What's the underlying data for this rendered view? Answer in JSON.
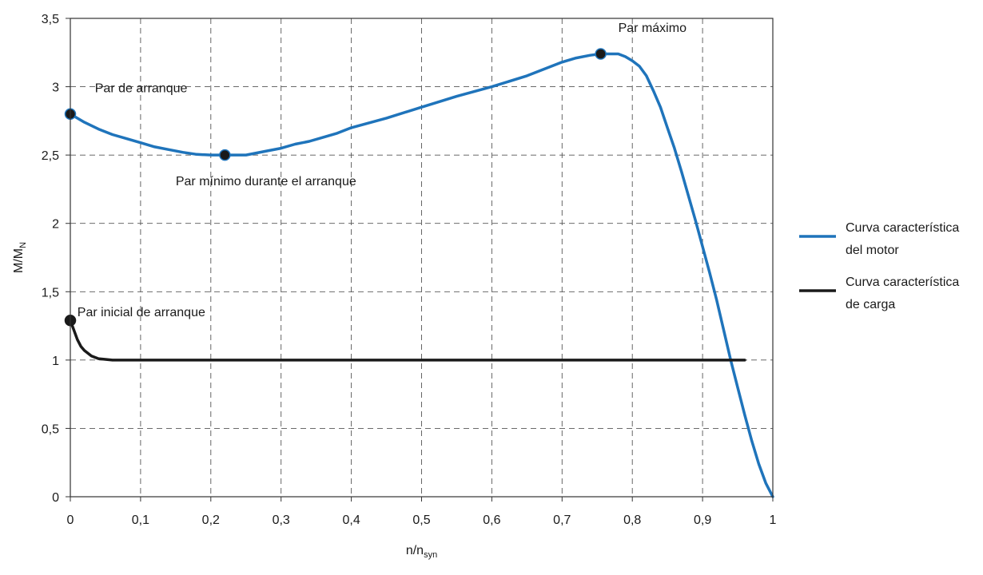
{
  "chart_data": {
    "type": "line",
    "xlabel_main": "n/n",
    "xlabel_sub": "syn",
    "ylabel_main": "M/M",
    "ylabel_sub": "N",
    "xlim": [
      0,
      1
    ],
    "ylim": [
      0,
      3.5
    ],
    "grid": true,
    "legend_position": "right",
    "x_ticks": [
      {
        "value": 0,
        "label": "0"
      },
      {
        "value": 0.1,
        "label": "0,1"
      },
      {
        "value": 0.2,
        "label": "0,2"
      },
      {
        "value": 0.3,
        "label": "0,3"
      },
      {
        "value": 0.4,
        "label": "0,4"
      },
      {
        "value": 0.5,
        "label": "0,5"
      },
      {
        "value": 0.6,
        "label": "0,6"
      },
      {
        "value": 0.7,
        "label": "0,7"
      },
      {
        "value": 0.8,
        "label": "0,8"
      },
      {
        "value": 0.9,
        "label": "0,9"
      },
      {
        "value": 1,
        "label": "1"
      }
    ],
    "y_ticks": [
      {
        "value": 0,
        "label": "0"
      },
      {
        "value": 0.5,
        "label": "0,5"
      },
      {
        "value": 1,
        "label": "1"
      },
      {
        "value": 1.5,
        "label": "1,5"
      },
      {
        "value": 2,
        "label": "2"
      },
      {
        "value": 2.5,
        "label": "2,5"
      },
      {
        "value": 3,
        "label": "3"
      },
      {
        "value": 3.5,
        "label": "3,5"
      }
    ],
    "series": [
      {
        "name": "Curva característica del motor",
        "legend_lines": [
          "Curva característica",
          "del motor"
        ],
        "color": "#1f74bb",
        "x": [
          0,
          0.02,
          0.04,
          0.06,
          0.08,
          0.1,
          0.12,
          0.14,
          0.16,
          0.18,
          0.2,
          0.22,
          0.25,
          0.28,
          0.3,
          0.32,
          0.34,
          0.36,
          0.38,
          0.4,
          0.45,
          0.5,
          0.55,
          0.6,
          0.65,
          0.7,
          0.72,
          0.74,
          0.755,
          0.77,
          0.78,
          0.79,
          0.8,
          0.81,
          0.82,
          0.83,
          0.84,
          0.85,
          0.86,
          0.87,
          0.88,
          0.89,
          0.9,
          0.91,
          0.92,
          0.93,
          0.94,
          0.95,
          0.96,
          0.97,
          0.98,
          0.99,
          1
        ],
        "y": [
          2.8,
          2.74,
          2.69,
          2.65,
          2.62,
          2.59,
          2.56,
          2.54,
          2.52,
          2.505,
          2.5,
          2.5,
          2.5,
          2.53,
          2.55,
          2.58,
          2.6,
          2.63,
          2.66,
          2.7,
          2.77,
          2.85,
          2.93,
          3.0,
          3.08,
          3.18,
          3.21,
          3.23,
          3.24,
          3.24,
          3.24,
          3.22,
          3.19,
          3.15,
          3.08,
          2.97,
          2.85,
          2.7,
          2.55,
          2.38,
          2.2,
          2.02,
          1.83,
          1.64,
          1.44,
          1.22,
          1.0,
          0.8,
          0.6,
          0.41,
          0.24,
          0.1,
          0
        ]
      },
      {
        "name": "Curva característica de carga",
        "legend_lines": [
          "Curva característica",
          "de carga"
        ],
        "color": "#1a1a1a",
        "x": [
          0,
          0.005,
          0.01,
          0.015,
          0.02,
          0.03,
          0.04,
          0.05,
          0.06,
          0.1,
          0.2,
          0.3,
          0.4,
          0.5,
          0.6,
          0.7,
          0.8,
          0.9,
          0.96
        ],
        "y": [
          1.29,
          1.22,
          1.15,
          1.1,
          1.07,
          1.03,
          1.01,
          1.005,
          1.0,
          1.0,
          1.0,
          1.0,
          1.0,
          1.0,
          1.0,
          1.0,
          1.0,
          1.0,
          1.0
        ]
      }
    ],
    "markers": [
      {
        "x": 0,
        "y": 2.8,
        "series": 0
      },
      {
        "x": 0.22,
        "y": 2.5,
        "series": 0
      },
      {
        "x": 0.755,
        "y": 3.24,
        "series": 0
      },
      {
        "x": 0,
        "y": 1.29,
        "series": 1
      }
    ],
    "annotations": [
      {
        "text": "Par de arranque",
        "x": 0.035,
        "y": 2.96
      },
      {
        "text": "Par mínimo durante el arranque",
        "x": 0.15,
        "y": 2.28
      },
      {
        "text": "Par máximo",
        "x": 0.78,
        "y": 3.4
      },
      {
        "text": "Par inicial de arranque",
        "x": 0.01,
        "y": 1.32
      }
    ]
  }
}
